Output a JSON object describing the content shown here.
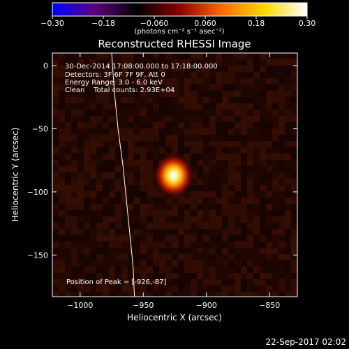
{
  "chart_data": {
    "type": "heatmap",
    "title": "Reconstructed RHESSI Image",
    "xlabel": "Heliocentric X (arcsec)",
    "ylabel": "Heliocentric Y (arcsec)",
    "xlim": [
      -1022,
      -828
    ],
    "ylim": [
      -183,
      10
    ],
    "xticks": [
      -1000,
      -950,
      -900,
      -850
    ],
    "xtick_labels": [
      "−1000",
      "−950",
      "−900",
      "−850"
    ],
    "yticks": [
      0,
      -50,
      -100,
      -150
    ],
    "ytick_labels": [
      "0",
      "−50",
      "−100",
      "−150"
    ],
    "colorbar": {
      "range": [
        -0.3,
        0.3
      ],
      "ticks": [
        -0.3,
        -0.18,
        -0.06,
        0.06,
        0.18,
        0.3
      ],
      "tick_labels": [
        "−0.30",
        "−0.18",
        "−0.060",
        "0.060",
        "0.18",
        "0.30"
      ],
      "units": "(photons cm⁻² s⁻¹ asec⁻²)",
      "colormap": [
        "#0000ff",
        "#5a007f",
        "#000000",
        "#8b0000",
        "#ff6a00",
        "#ffd900",
        "#ffffff"
      ]
    },
    "source": {
      "x": -926,
      "y": -87,
      "peak": 0.3
    },
    "limb": {
      "points": [
        [
          -975,
          10
        ],
        [
          -973,
          -20
        ],
        [
          -970,
          -50
        ],
        [
          -966,
          -80
        ],
        [
          -963,
          -110
        ],
        [
          -960,
          -140
        ],
        [
          -958,
          -160
        ],
        [
          -957,
          -183
        ]
      ]
    }
  },
  "annotations": {
    "time": "30-Dec-2014 17:08:00.000 to 17:18:00.000",
    "detectors": "Detectors: 3F 6F 7F 9F, Att 0",
    "energy": "Energy Range: 3.0 - 6.0 keV",
    "clean": "Clean    Total counts: 2.93E+04",
    "peak": "Position of Peak = [-926,-87]"
  },
  "footer": {
    "date": "22-Sep-2017 02:02"
  }
}
